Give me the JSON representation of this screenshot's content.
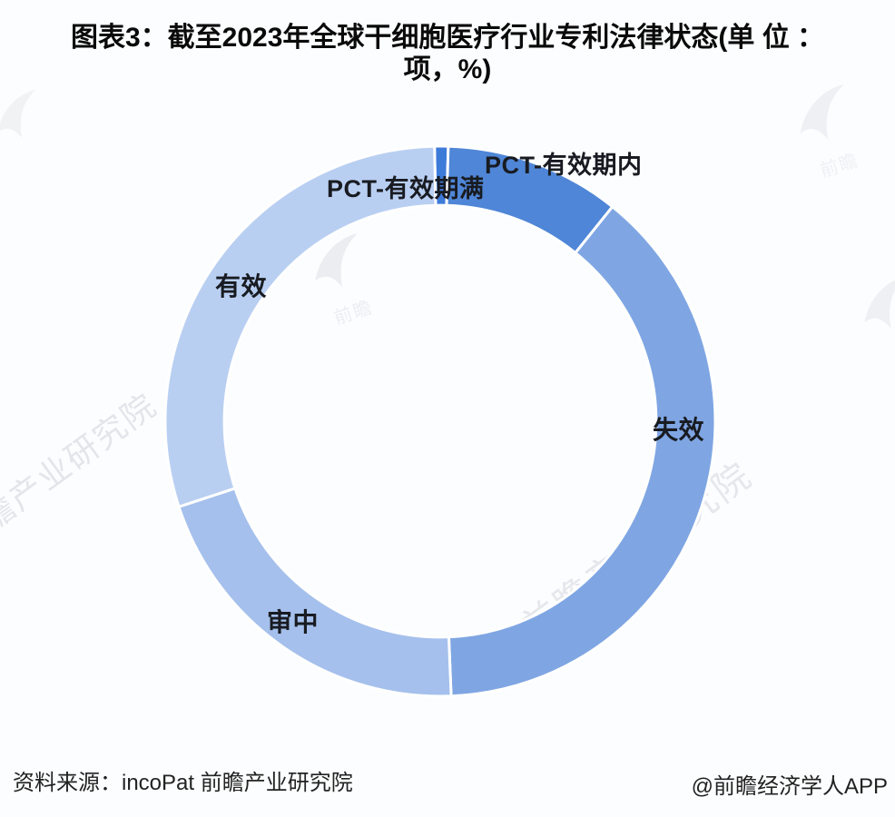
{
  "title": {
    "line1": "图表3：截至2023年全球干细胞医疗行业专利法律状态(单 位 ：",
    "line2": "项，%)"
  },
  "chart_data": {
    "type": "pie",
    "donut": true,
    "title": "截至2023年全球干细胞医疗行业专利法律状态",
    "unit": "项，%",
    "start_angle_deg": -1.2,
    "inner_radius_ratio": 0.785,
    "legend_position": "none",
    "labels_on_chart": true,
    "segments": [
      {
        "label": "PCT-有效期满",
        "value": 0.8,
        "color": "#3d7bd9"
      },
      {
        "label": "PCT-有效期内",
        "value": 10.3,
        "color": "#4f86d7"
      },
      {
        "label": "失效",
        "value": 38.6,
        "color": "#7fa6e3"
      },
      {
        "label": "审中",
        "value": 20.6,
        "color": "#a5c0ec"
      },
      {
        "label": "有效",
        "value": 29.7,
        "color": "#b9cff2"
      }
    ],
    "colors": {
      "gap_stroke": "#ffffff",
      "label_text": "#181b21"
    }
  },
  "footer": {
    "source": "资料来源：incoPat 前瞻产业研究院",
    "credit": "@前瞻经济学人APP"
  },
  "watermark": {
    "text": "前瞻产业研究院",
    "short": "前瞻"
  }
}
